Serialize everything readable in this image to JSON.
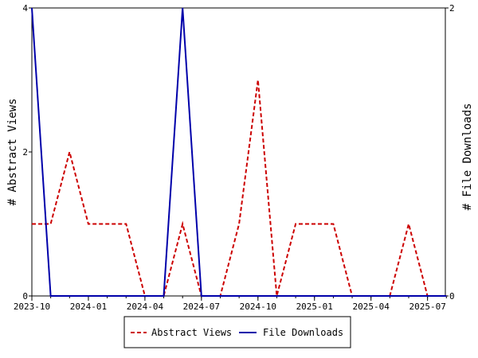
{
  "chart_data": {
    "type": "line",
    "x": [
      "2023-10",
      "2023-11",
      "2023-12",
      "2024-01",
      "2024-02",
      "2024-03",
      "2024-04",
      "2024-05",
      "2024-06",
      "2024-07",
      "2024-08",
      "2024-09",
      "2024-10",
      "2024-11",
      "2024-12",
      "2025-01",
      "2025-02",
      "2025-03",
      "2025-04",
      "2025-05",
      "2025-06",
      "2025-07",
      "2025-08"
    ],
    "series": [
      {
        "name": "Abstract Views",
        "axis": "left",
        "color": "#cc0000",
        "dash": "dashed",
        "values": [
          1,
          1,
          2,
          1,
          1,
          1,
          0,
          0,
          1,
          0,
          0,
          1,
          3,
          0,
          1,
          1,
          1,
          0,
          0,
          0,
          1,
          0,
          0
        ]
      },
      {
        "name": "File Downloads",
        "axis": "right",
        "color": "#0000aa",
        "dash": "solid",
        "values": [
          2,
          0,
          0,
          0,
          0,
          0,
          0,
          0,
          2,
          0,
          0,
          0,
          0,
          0,
          0,
          0,
          0,
          0,
          0,
          0,
          0,
          0,
          0
        ]
      }
    ],
    "xticks": [
      "2023-10",
      "2024-01",
      "2024-04",
      "2024-07",
      "2024-10",
      "2025-01",
      "2025-04",
      "2025-07"
    ],
    "ylabel_left": "# Abstract Views",
    "ylabel_right": "# File Downloads",
    "yticks_left": [
      0,
      2,
      4
    ],
    "yticks_right": [
      0,
      2
    ],
    "ylim_left": [
      0,
      4
    ],
    "ylim_right": [
      0,
      2
    ],
    "grid": false,
    "legend_position": "bottom"
  }
}
